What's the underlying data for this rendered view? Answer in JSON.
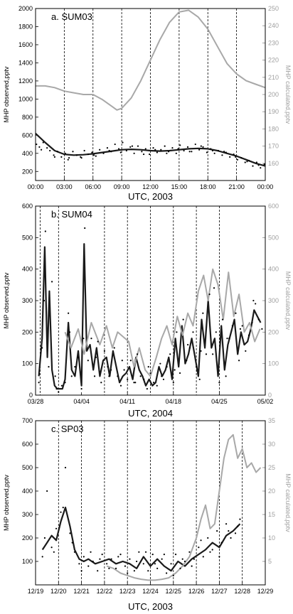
{
  "colors": {
    "observed_line": "#1a1a1a",
    "calculated_line": "#a8a8a8",
    "points": "#000000",
    "frame": "#000000"
  },
  "chart_data": [
    {
      "type": "line",
      "title": "a. SUM03",
      "xlabel": "UTC, 2003",
      "ylabel": "MHP observed,pptv",
      "ylabel_right": "MHP calculated,pptv",
      "x_ticks": [
        "00:00",
        "03:00",
        "06:00",
        "09:00",
        "12:00",
        "15:00",
        "18:00",
        "21:00",
        "00:00"
      ],
      "xlim_hours": [
        0,
        24
      ],
      "ylim": [
        100,
        2000
      ],
      "y_ticks": [
        200,
        400,
        600,
        800,
        1000,
        1200,
        1400,
        1600,
        1800,
        2000
      ],
      "ylim_right": [
        150,
        250
      ],
      "y_ticks_right": [
        160,
        170,
        180,
        190,
        200,
        210,
        220,
        230,
        240,
        250
      ],
      "vlines_hours": [
        3,
        6,
        9,
        12,
        15,
        18,
        21
      ],
      "series": [
        {
          "role": "observed_fit",
          "axis": "left",
          "x": [
            0,
            1,
            2,
            3,
            4,
            5,
            6,
            7,
            8,
            9,
            10,
            11,
            12,
            13,
            14,
            15,
            16,
            17,
            18,
            19,
            20,
            21,
            22,
            23,
            24
          ],
          "y": [
            620,
            520,
            430,
            390,
            380,
            385,
            395,
            410,
            425,
            440,
            445,
            440,
            430,
            425,
            430,
            440,
            450,
            455,
            450,
            430,
            400,
            370,
            330,
            290,
            260
          ]
        },
        {
          "role": "calculated",
          "axis": "right",
          "x": [
            0,
            1,
            2,
            3,
            4,
            5,
            6,
            7,
            8,
            8.5,
            9,
            10,
            11,
            12,
            13,
            14,
            15,
            16,
            17,
            18,
            19,
            20,
            21,
            22,
            23,
            24
          ],
          "y": [
            205,
            205,
            204,
            202,
            201,
            200,
            200,
            197,
            193,
            191,
            192,
            198,
            208,
            220,
            232,
            242,
            248,
            249,
            245,
            238,
            228,
            218,
            212,
            208,
            206,
            204
          ]
        },
        {
          "role": "observed_points",
          "axis": "left",
          "x": [
            0.1,
            0.4,
            0.8,
            1.2,
            1.5,
            1.9,
            2.3,
            2.7,
            3.1,
            3.5,
            3.9,
            4.3,
            4.7,
            5.1,
            5.5,
            5.9,
            6.3,
            6.7,
            7.1,
            7.5,
            7.9,
            8.3,
            8.7,
            9.1,
            9.5,
            9.9,
            10.3,
            10.7,
            11.1,
            11.5,
            11.9,
            12.3,
            12.7,
            13.1,
            13.5,
            13.9,
            14.3,
            14.7,
            15.1,
            15.5,
            15.9,
            16.3,
            16.7,
            17.1,
            17.5,
            17.9,
            18.3,
            18.7,
            19.1,
            19.5,
            19.9,
            20.3,
            20.7,
            21.1,
            21.5,
            21.9,
            22.3,
            22.7,
            23.1,
            23.5,
            23.9,
            0.6,
            2.0,
            3.4,
            4.8,
            6.1,
            7.7,
            8.9,
            10.1,
            11.3,
            12.5,
            13.7,
            14.9,
            16.1,
            17.3,
            18.5,
            19.7,
            20.9,
            22.1,
            23.3
          ],
          "y": [
            500,
            470,
            520,
            460,
            430,
            380,
            420,
            360,
            400,
            350,
            420,
            380,
            360,
            430,
            390,
            410,
            370,
            440,
            400,
            460,
            420,
            500,
            450,
            520,
            430,
            470,
            400,
            480,
            420,
            450,
            390,
            460,
            410,
            440,
            480,
            420,
            460,
            400,
            490,
            430,
            470,
            420,
            500,
            440,
            470,
            410,
            450,
            400,
            430,
            380,
            410,
            360,
            390,
            330,
            350,
            300,
            320,
            260,
            300,
            240,
            280,
            440,
            360,
            330,
            350,
            380,
            430,
            410,
            480,
            390,
            440,
            400,
            450,
            420,
            480,
            430,
            420,
            360,
            310,
            270
          ]
        }
      ]
    },
    {
      "type": "line",
      "title": "b. SUM04",
      "xlabel": "UTC, 2004",
      "ylabel": "MHP observed,pptv",
      "ylabel_right": "MHP calculated,pptv",
      "x_ticks": [
        "03/28",
        "04/04",
        "04/11",
        "04/18",
        "04/25",
        "05/02"
      ],
      "xlim_days": [
        0,
        35
      ],
      "ylim": [
        0,
        600
      ],
      "y_ticks": [
        0,
        100,
        200,
        300,
        400,
        500,
        600
      ],
      "ylim_right": [
        0,
        600
      ],
      "y_ticks_right": [
        0,
        100,
        200,
        300,
        400,
        500,
        600
      ],
      "vlines_days": [
        0.7,
        3.5,
        10.5,
        14,
        17.5,
        21,
        24.5,
        28
      ],
      "series": [
        {
          "role": "observed",
          "axis": "left",
          "x": [
            0.5,
            1,
            1.4,
            1.8,
            2.1,
            2.5,
            2.9,
            3.3,
            3.7,
            4.1,
            4.5,
            5,
            5.5,
            6,
            6.5,
            7,
            7.4,
            7.8,
            8.3,
            8.8,
            9.3,
            9.8,
            10.3,
            10.8,
            11.3,
            11.8,
            12.3,
            12.8,
            13.3,
            13.8,
            14.3,
            14.8,
            15.3,
            15.8,
            16.3,
            16.8,
            17.3,
            17.8,
            18.3,
            18.8,
            19.3,
            19.8,
            20.3,
            20.8,
            21.3,
            21.8,
            22.3,
            22.8,
            23.3,
            23.8,
            24.3,
            24.8,
            25.3,
            25.8,
            26.3,
            26.8,
            27.3,
            27.8,
            28.3,
            28.8,
            29.3,
            29.8,
            30.3,
            30.8,
            31.3,
            31.8,
            32.3,
            32.8,
            33.3,
            33.8,
            34.3
          ],
          "y": [
            60,
            180,
            470,
            120,
            330,
            80,
            30,
            20,
            20,
            20,
            50,
            230,
            80,
            60,
            140,
            30,
            480,
            140,
            160,
            80,
            150,
            60,
            110,
            120,
            60,
            140,
            90,
            40,
            60,
            70,
            90,
            50,
            120,
            80,
            60,
            30,
            50,
            30,
            40,
            90,
            60,
            80,
            120,
            50,
            180,
            90,
            220,
            100,
            130,
            180,
            120,
            60,
            240,
            150,
            300,
            150,
            180,
            60,
            220,
            80,
            160,
            200,
            240,
            130,
            200,
            160,
            170,
            210,
            270,
            250,
            230
          ]
        },
        {
          "role": "calculated",
          "axis": "right",
          "x": [
            4.5,
            5.4,
            6.5,
            7.4,
            8.5,
            9.8,
            10.8,
            11.7,
            12.5,
            14.2,
            15,
            15.8,
            16.7,
            17.5,
            18.4,
            19.2,
            20,
            20.8,
            21.6,
            22.4,
            23.2,
            24,
            24.8,
            25.6,
            26.3,
            27,
            27.8,
            28.6,
            29.4,
            30.2,
            31,
            31.8,
            32.6,
            33.4,
            34.2
          ],
          "y": [
            200,
            150,
            210,
            130,
            230,
            160,
            220,
            150,
            200,
            170,
            90,
            150,
            80,
            60,
            120,
            180,
            220,
            160,
            250,
            190,
            260,
            220,
            330,
            380,
            300,
            400,
            350,
            240,
            390,
            250,
            320,
            200,
            230,
            170,
            210
          ]
        },
        {
          "role": "observed_points",
          "axis": "left",
          "x": [
            0.5,
            1.0,
            1.5,
            2.0,
            2.5,
            3.0,
            3.5,
            4.0,
            4.5,
            5.0,
            5.5,
            6.0,
            6.5,
            7.0,
            7.5,
            8.0,
            8.5,
            9.0,
            9.5,
            10.0,
            10.5,
            11.0,
            11.5,
            12.0,
            12.5,
            13.0,
            13.5,
            14.0,
            14.5,
            15.0,
            15.5,
            16.0,
            16.5,
            17.0,
            17.5,
            18.0,
            18.5,
            19.0,
            19.5,
            20.0,
            20.5,
            21.0,
            21.5,
            22.0,
            22.5,
            23.0,
            23.5,
            24.0,
            24.5,
            25.0,
            25.5,
            26.0,
            26.5,
            27.0,
            27.5,
            28.0,
            28.5,
            29.0,
            29.5,
            30.0,
            30.5,
            31.0,
            31.5,
            32.0,
            32.5,
            33.0,
            33.5,
            34.0,
            34.5,
            1.3,
            3.2,
            5.2,
            7.3,
            9.2,
            11.2,
            13.2,
            15.2,
            17.2,
            19.2,
            21.2,
            23.2,
            25.2,
            27.2,
            29.2,
            31.2,
            33.2
          ],
          "y": [
            40,
            150,
            520,
            90,
            360,
            60,
            10,
            30,
            40,
            260,
            60,
            90,
            120,
            20,
            530,
            110,
            180,
            60,
            170,
            40,
            140,
            90,
            80,
            150,
            60,
            30,
            80,
            50,
            110,
            40,
            130,
            60,
            50,
            20,
            70,
            40,
            30,
            100,
            50,
            90,
            130,
            40,
            200,
            70,
            240,
            110,
            150,
            200,
            90,
            50,
            260,
            130,
            320,
            130,
            200,
            40,
            240,
            60,
            180,
            220,
            260,
            110,
            220,
            140,
            190,
            230,
            290,
            240,
            210,
            300,
            20,
            200,
            180,
            120,
            60,
            110,
            40,
            90,
            60,
            80,
            160,
            140,
            340,
            180,
            210,
            300
          ]
        }
      ]
    },
    {
      "type": "line",
      "title": "c. SP03",
      "xlabel": "UTC, 2003",
      "ylabel": "MHP observed,pptv",
      "ylabel_right": "MHP calculated,pptv",
      "x_ticks": [
        "12/19",
        "12/20",
        "12/21",
        "12/22",
        "12/23",
        "12/24",
        "12/25",
        "12/26",
        "12/27",
        "12/28",
        "12/29"
      ],
      "xlim_days": [
        0,
        10
      ],
      "ylim": [
        0,
        700
      ],
      "y_ticks": [
        100,
        200,
        300,
        400,
        500,
        600,
        700
      ],
      "ylim_right": [
        0,
        35
      ],
      "y_ticks_right": [
        5,
        10,
        15,
        20,
        25,
        30,
        35
      ],
      "vlines_days": [
        1,
        2,
        3,
        4,
        5,
        6,
        7,
        8,
        9
      ],
      "series": [
        {
          "role": "observed",
          "axis": "left",
          "x": [
            0.3,
            0.5,
            0.7,
            0.9,
            1.1,
            1.3,
            1.5,
            1.7,
            1.9,
            2.1,
            2.3,
            2.6,
            2.9,
            3.2,
            3.5,
            3.8,
            4.1,
            4.4,
            4.7,
            5.0,
            5.3,
            5.6,
            5.9,
            6.2,
            6.5,
            6.8,
            7.1,
            7.4,
            7.7,
            8.0,
            8.3,
            8.6,
            8.9
          ],
          "y": [
            150,
            180,
            210,
            190,
            270,
            330,
            250,
            150,
            110,
            100,
            110,
            90,
            100,
            110,
            90,
            100,
            90,
            70,
            120,
            80,
            110,
            80,
            60,
            100,
            80,
            110,
            130,
            150,
            180,
            160,
            210,
            230,
            260
          ]
        },
        {
          "role": "calculated",
          "axis": "right",
          "x": [
            3.1,
            3.4,
            3.7,
            4.0,
            4.3,
            4.6,
            4.9,
            5.2,
            5.5,
            5.8,
            6.1,
            6.4,
            6.7,
            7.0,
            7.2,
            7.4,
            7.6,
            7.8,
            8.0,
            8.2,
            8.4,
            8.6,
            8.8,
            9.0,
            9.2,
            9.4,
            9.6,
            9.8
          ],
          "y": [
            4,
            3.5,
            2.5,
            2,
            1.5,
            1.2,
            1,
            1,
            1.2,
            1.5,
            2.5,
            4,
            6,
            10,
            14,
            17,
            12,
            13,
            20,
            27,
            31,
            32,
            27,
            29,
            25,
            26,
            24,
            25
          ]
        },
        {
          "role": "observed_points",
          "axis": "left",
          "x": [
            0.3,
            0.5,
            0.7,
            0.9,
            1.1,
            1.3,
            1.5,
            1.7,
            1.9,
            2.1,
            2.3,
            2.5,
            2.7,
            2.9,
            3.1,
            3.3,
            3.5,
            3.7,
            3.9,
            4.1,
            4.3,
            4.5,
            4.7,
            4.9,
            5.1,
            5.3,
            5.5,
            5.7,
            5.9,
            6.1,
            6.3,
            6.5,
            6.7,
            6.9,
            7.1,
            7.3,
            7.5,
            7.7,
            7.9,
            8.1,
            8.3,
            8.5,
            8.7,
            8.9,
            0.4,
            0.8,
            1.2,
            1.6,
            2.0,
            2.4,
            2.8,
            3.2,
            3.6,
            4.0,
            4.4,
            4.8,
            5.2,
            5.6,
            6.0,
            6.4,
            6.8,
            7.2,
            7.6,
            8.0,
            8.4,
            8.8
          ],
          "y": [
            120,
            400,
            160,
            240,
            310,
            500,
            220,
            140,
            90,
            120,
            80,
            100,
            60,
            130,
            90,
            110,
            70,
            130,
            80,
            110,
            60,
            140,
            90,
            60,
            130,
            70,
            110,
            50,
            90,
            130,
            70,
            100,
            140,
            110,
            160,
            120,
            200,
            150,
            230,
            180,
            260,
            200,
            220,
            280,
            200,
            140,
            330,
            180,
            60,
            140,
            110,
            70,
            120,
            50,
            100,
            140,
            90,
            130,
            40,
            110,
            80,
            190,
            140,
            120,
            230,
            250
          ]
        }
      ]
    }
  ]
}
